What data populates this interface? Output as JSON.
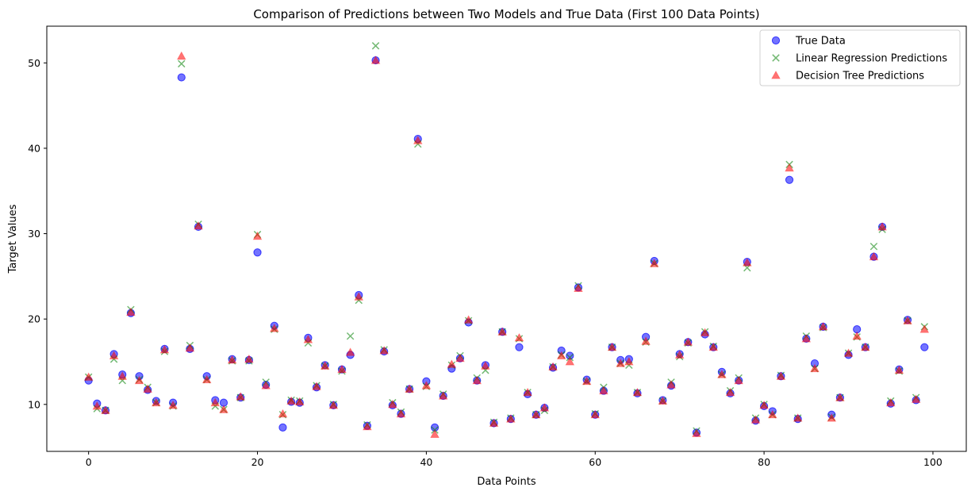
{
  "chart_data": {
    "type": "scatter",
    "title": "Comparison of Predictions between Two Models and True Data (First 100 Data Points)",
    "xlabel": "Data Points",
    "ylabel": "Target Values",
    "xlim": [
      -4.95,
      103.95
    ],
    "ylim": [
      4.5,
      54.3
    ],
    "xticks": [
      0,
      20,
      40,
      60,
      80,
      100
    ],
    "yticks": [
      10,
      20,
      30,
      40,
      50
    ],
    "grid": false,
    "legend_position": "top-right",
    "x": [
      0,
      1,
      2,
      3,
      4,
      5,
      6,
      7,
      8,
      9,
      10,
      11,
      12,
      13,
      14,
      15,
      16,
      17,
      18,
      19,
      20,
      21,
      22,
      23,
      24,
      25,
      26,
      27,
      28,
      29,
      30,
      31,
      32,
      33,
      34,
      35,
      36,
      37,
      38,
      39,
      40,
      41,
      42,
      43,
      44,
      45,
      46,
      47,
      48,
      49,
      50,
      51,
      52,
      53,
      54,
      55,
      56,
      57,
      58,
      59,
      60,
      61,
      62,
      63,
      64,
      65,
      66,
      67,
      68,
      69,
      70,
      71,
      72,
      73,
      74,
      75,
      76,
      77,
      78,
      79,
      80,
      81,
      82,
      83,
      84,
      85,
      86,
      87,
      88,
      89,
      90,
      91,
      92,
      93,
      94,
      95,
      96,
      97,
      98,
      99
    ],
    "series": [
      {
        "name": "True Data",
        "marker": "circle",
        "color": "#0000ff",
        "values": [
          12.8,
          10.1,
          9.3,
          15.9,
          13.5,
          20.7,
          13.3,
          11.7,
          10.4,
          16.5,
          10.2,
          48.3,
          16.5,
          30.8,
          13.3,
          10.5,
          10.2,
          15.3,
          10.8,
          15.2,
          27.8,
          12.3,
          19.2,
          7.3,
          10.3,
          10.2,
          17.8,
          12.0,
          14.6,
          9.9,
          14.1,
          15.8,
          22.8,
          7.5,
          50.3,
          16.2,
          9.9,
          8.9,
          11.8,
          41.1,
          12.7,
          7.3,
          11.0,
          14.2,
          15.4,
          19.6,
          12.8,
          14.6,
          7.8,
          18.5,
          8.3,
          16.7,
          11.2,
          8.8,
          9.6,
          14.3,
          16.3,
          15.7,
          23.7,
          12.9,
          8.8,
          11.6,
          16.7,
          15.2,
          15.3,
          11.3,
          17.9,
          26.8,
          10.5,
          12.2,
          15.9,
          17.3,
          6.7,
          18.2,
          16.7,
          13.8,
          11.3,
          12.8,
          26.7,
          8.1,
          9.8,
          9.2,
          13.3,
          36.3,
          8.3,
          17.7,
          14.8,
          19.1,
          8.8,
          10.8,
          15.8,
          18.8,
          16.7,
          27.3,
          30.8,
          10.1,
          14.1,
          19.9,
          10.5,
          16.7
        ]
      },
      {
        "name": "Linear Regression Predictions",
        "marker": "x",
        "color": "#008000",
        "values": [
          13.2,
          9.5,
          9.3,
          15.3,
          12.8,
          21.1,
          12.9,
          12.0,
          10.2,
          16.2,
          9.8,
          49.9,
          16.9,
          31.1,
          12.9,
          9.8,
          9.4,
          15.1,
          10.8,
          15.1,
          29.9,
          12.6,
          18.8,
          8.8,
          10.5,
          10.4,
          17.2,
          12.2,
          14.5,
          10.0,
          13.9,
          18.0,
          22.2,
          7.6,
          52.0,
          16.4,
          10.2,
          9.1,
          11.8,
          40.5,
          12.1,
          7.0,
          11.2,
          14.6,
          15.7,
          19.8,
          13.1,
          14.0,
          7.9,
          18.5,
          8.4,
          17.7,
          11.4,
          8.8,
          9.3,
          14.4,
          15.8,
          15.5,
          23.9,
          12.7,
          8.9,
          12.0,
          16.7,
          14.8,
          14.6,
          11.4,
          17.3,
          26.5,
          10.4,
          12.6,
          15.6,
          17.2,
          6.9,
          18.5,
          16.8,
          13.5,
          11.6,
          13.1,
          26.0,
          8.4,
          10.0,
          8.8,
          13.4,
          38.1,
          8.4,
          18.0,
          14.2,
          19.0,
          8.5,
          10.8,
          16.0,
          17.9,
          16.7,
          28.5,
          30.5,
          10.4,
          13.9,
          19.8,
          10.8,
          19.1
        ]
      },
      {
        "name": "Decision Tree  Predictions",
        "marker": "triangle",
        "color": "#ff0000",
        "values": [
          13.2,
          9.8,
          9.3,
          15.7,
          13.3,
          20.8,
          12.8,
          11.8,
          10.2,
          16.4,
          9.9,
          50.8,
          16.6,
          30.9,
          12.9,
          10.2,
          9.4,
          15.2,
          10.9,
          15.3,
          29.7,
          12.2,
          18.9,
          8.9,
          10.4,
          10.3,
          17.6,
          12.1,
          14.5,
          9.9,
          14.1,
          16.1,
          22.6,
          7.4,
          50.3,
          16.3,
          10.0,
          8.9,
          11.8,
          40.9,
          12.2,
          6.5,
          11.0,
          14.7,
          15.4,
          19.9,
          12.8,
          14.5,
          7.8,
          18.5,
          8.3,
          17.8,
          11.4,
          8.8,
          9.6,
          14.4,
          15.7,
          15.0,
          23.6,
          12.7,
          8.8,
          11.6,
          16.7,
          14.8,
          15.0,
          11.4,
          17.4,
          26.5,
          10.4,
          12.3,
          15.8,
          17.3,
          6.6,
          18.4,
          16.7,
          13.5,
          11.4,
          12.8,
          26.6,
          8.2,
          9.9,
          8.8,
          13.3,
          37.7,
          8.4,
          17.7,
          14.2,
          19.1,
          8.4,
          10.8,
          16.0,
          18.0,
          16.7,
          27.3,
          30.8,
          10.2,
          14.0,
          19.8,
          10.6,
          18.8
        ]
      }
    ]
  }
}
